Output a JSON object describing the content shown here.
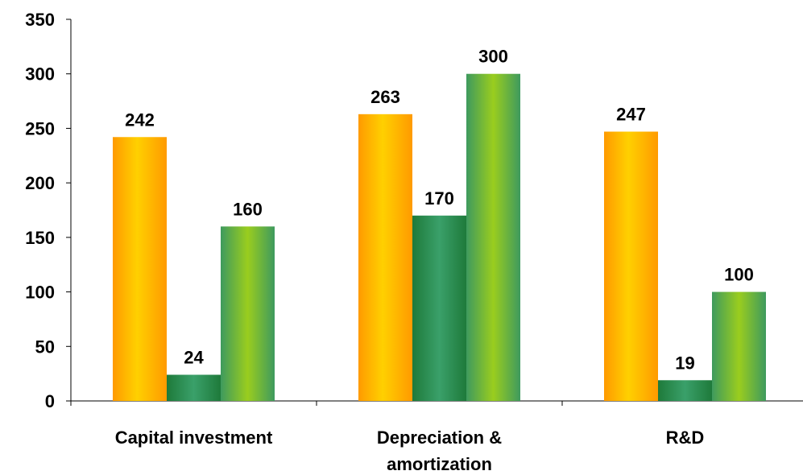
{
  "chart_data": {
    "type": "bar",
    "title": "",
    "xlabel": "",
    "ylabel": "",
    "categories": [
      [
        "Capital investment"
      ],
      [
        "Depreciation &",
        "amortization"
      ],
      [
        "R&D"
      ]
    ],
    "series": [
      {
        "values": [
          242,
          263,
          247
        ],
        "color": "#FFC000"
      },
      {
        "values": [
          24,
          170,
          19
        ],
        "color": "#2E8B57"
      },
      {
        "values": [
          160,
          300,
          100
        ],
        "color": "#8DC63F"
      }
    ],
    "ylim": [
      0,
      350
    ],
    "yticks": [
      0,
      50,
      100,
      150,
      200,
      250,
      300,
      350
    ],
    "grid": false,
    "legend": "none"
  }
}
